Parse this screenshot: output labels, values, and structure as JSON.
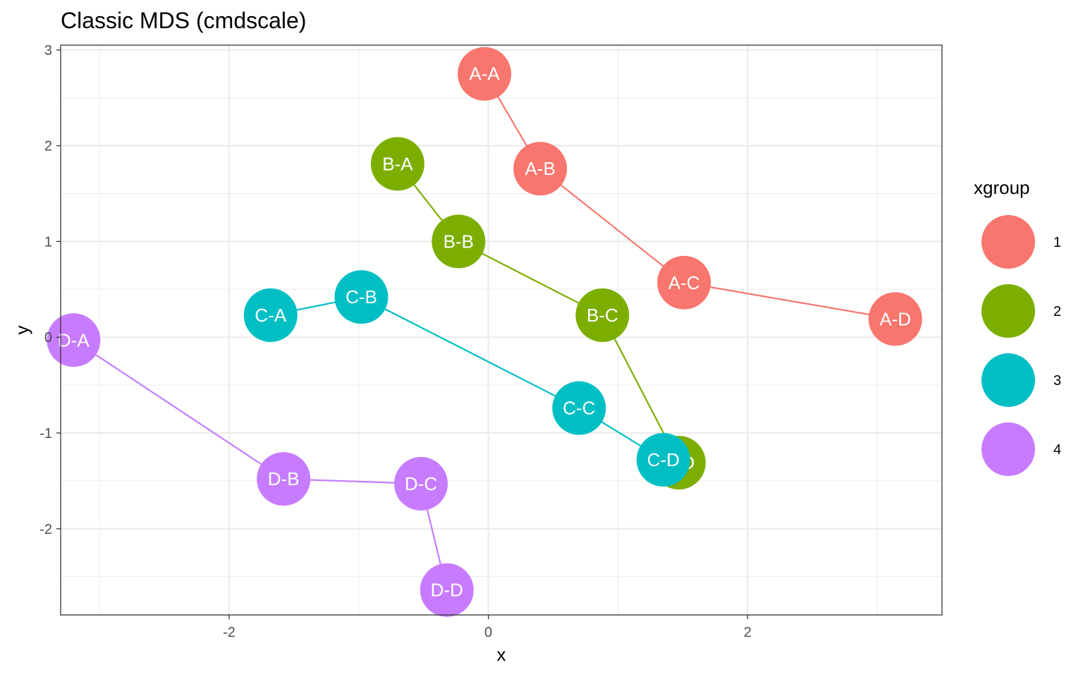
{
  "chart_data": {
    "type": "scatter",
    "title": "Classic MDS (cmdscale)",
    "xlabel": "x",
    "ylabel": "y",
    "xlim": [
      -3.3,
      3.5
    ],
    "ylim": [
      -2.9,
      3.05
    ],
    "x_ticks": [
      -2,
      0,
      2
    ],
    "y_ticks": [
      -2,
      -1,
      0,
      1,
      2,
      3
    ],
    "grid": true,
    "legend": {
      "title": "xgroup",
      "position": "right",
      "entries": [
        "1",
        "2",
        "3",
        "4"
      ]
    },
    "series": [
      {
        "name": "1",
        "color": "#F8766D",
        "points": [
          {
            "label": "A-A",
            "x": -0.03,
            "y": 2.75
          },
          {
            "label": "A-B",
            "x": 0.4,
            "y": 1.76
          },
          {
            "label": "A-C",
            "x": 1.51,
            "y": 0.57
          },
          {
            "label": "A-D",
            "x": 3.14,
            "y": 0.19
          }
        ]
      },
      {
        "name": "2",
        "color": "#7CAE00",
        "points": [
          {
            "label": "B-A",
            "x": -0.7,
            "y": 1.81
          },
          {
            "label": "B-B",
            "x": -0.23,
            "y": 1.0
          },
          {
            "label": "B-C",
            "x": 0.88,
            "y": 0.23
          },
          {
            "label": "B-D",
            "x": 1.47,
            "y": -1.31
          }
        ]
      },
      {
        "name": "3",
        "color": "#00BFC4",
        "points": [
          {
            "label": "C-A",
            "x": -1.68,
            "y": 0.23
          },
          {
            "label": "C-B",
            "x": -0.98,
            "y": 0.42
          },
          {
            "label": "C-C",
            "x": 0.7,
            "y": -0.74
          },
          {
            "label": "C-D",
            "x": 1.35,
            "y": -1.28
          }
        ]
      },
      {
        "name": "4",
        "color": "#C77CFF",
        "points": [
          {
            "label": "D-A",
            "x": -3.2,
            "y": -0.03
          },
          {
            "label": "D-B",
            "x": -1.58,
            "y": -1.48
          },
          {
            "label": "D-C",
            "x": -0.52,
            "y": -1.53
          },
          {
            "label": "D-D",
            "x": -0.32,
            "y": -2.64
          }
        ]
      }
    ]
  }
}
